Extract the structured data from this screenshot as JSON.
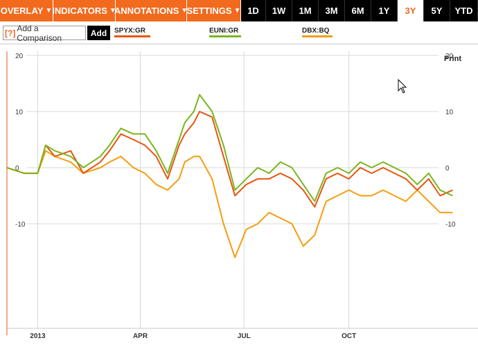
{
  "toolbar": {
    "menus": [
      {
        "label": "OVERLAY"
      },
      {
        "label": "INDICATORS"
      },
      {
        "label": "ANNOTATIONS"
      },
      {
        "label": "SETTINGS"
      }
    ],
    "ranges": [
      "1D",
      "1W",
      "1M",
      "3M",
      "6M",
      "1Y",
      "3Y",
      "5Y",
      "YTD"
    ],
    "active_range": "3Y",
    "caret": "▼"
  },
  "compare": {
    "help": "[?]",
    "placeholder": "Add a Comparison",
    "add_label": "Add"
  },
  "legend": [
    {
      "label": "SPYX:GR",
      "color": "#e8540f"
    },
    {
      "label": "EUNI:GR",
      "color": "#7ab51d"
    },
    {
      "label": "DBX:BQ",
      "color": "#f59d0e"
    }
  ],
  "print_label": "Print",
  "colors": {
    "accent": "#f26a1d",
    "grid": "#d8d8d8",
    "axis": "#e8540f"
  },
  "chart_data": {
    "type": "line",
    "y_ticks": [
      20,
      10,
      0,
      -10
    ],
    "ylim": [
      -16,
      20
    ],
    "x_labels": [
      "2013",
      "APR",
      "JUL",
      "OCT"
    ],
    "x_label_dates": [
      "2013-01-01",
      "2013-04-01",
      "2013-07-01",
      "2013-10-01"
    ],
    "x_range": [
      "2012-12-05",
      "2014-01-01"
    ],
    "series": [
      {
        "name": "SPYX:GR",
        "color": "#e8540f",
        "x": [
          "2012-12-05",
          "2012-12-20",
          "2013-01-01",
          "2013-01-08",
          "2013-01-16",
          "2013-01-30",
          "2013-02-10",
          "2013-02-25",
          "2013-03-05",
          "2013-03-15",
          "2013-03-26",
          "2013-04-05",
          "2013-04-15",
          "2013-04-25",
          "2013-05-05",
          "2013-05-10",
          "2013-05-18",
          "2013-05-23",
          "2013-06-03",
          "2013-06-13",
          "2013-06-23",
          "2013-07-03",
          "2013-07-13",
          "2013-07-23",
          "2013-08-02",
          "2013-08-12",
          "2013-08-22",
          "2013-09-01",
          "2013-09-11",
          "2013-09-21",
          "2013-10-01",
          "2013-10-11",
          "2013-10-21",
          "2013-10-31",
          "2013-11-10",
          "2013-11-20",
          "2013-11-30",
          "2013-12-10",
          "2013-12-20",
          "2013-12-31"
        ],
        "y": [
          0,
          -1,
          -1,
          4,
          2,
          3,
          -1,
          1,
          3,
          6,
          5,
          4,
          2,
          -2,
          4,
          6,
          8,
          10,
          9,
          2,
          -5,
          -3,
          -2,
          -2,
          -1,
          -2,
          -4,
          -7,
          -2,
          -1,
          -2,
          0,
          -1,
          0,
          -1,
          -2,
          -4,
          -2,
          -5,
          -4
        ]
      },
      {
        "name": "EUNI:GR",
        "color": "#7ab51d",
        "x": [
          "2012-12-05",
          "2012-12-20",
          "2013-01-01",
          "2013-01-08",
          "2013-01-16",
          "2013-01-30",
          "2013-02-10",
          "2013-02-25",
          "2013-03-05",
          "2013-03-15",
          "2013-03-26",
          "2013-04-05",
          "2013-04-15",
          "2013-04-25",
          "2013-05-05",
          "2013-05-10",
          "2013-05-18",
          "2013-05-23",
          "2013-06-03",
          "2013-06-13",
          "2013-06-23",
          "2013-07-03",
          "2013-07-13",
          "2013-07-23",
          "2013-08-02",
          "2013-08-12",
          "2013-08-22",
          "2013-09-01",
          "2013-09-11",
          "2013-09-21",
          "2013-10-01",
          "2013-10-11",
          "2013-10-21",
          "2013-10-31",
          "2013-11-10",
          "2013-11-20",
          "2013-11-30",
          "2013-12-10",
          "2013-12-20",
          "2013-12-31"
        ],
        "y": [
          0,
          -1,
          -1,
          4,
          3,
          2,
          0,
          2,
          4,
          7,
          6,
          6,
          3,
          -1,
          5,
          8,
          10,
          13,
          10,
          4,
          -4,
          -2,
          0,
          -1,
          1,
          0,
          -3,
          -6,
          -1,
          0,
          -1,
          1,
          0,
          1,
          0,
          -1,
          -3,
          -1,
          -4,
          -5
        ]
      },
      {
        "name": "DBX:BQ",
        "color": "#f59d0e",
        "x": [
          "2012-12-05",
          "2012-12-20",
          "2013-01-01",
          "2013-01-08",
          "2013-01-16",
          "2013-01-30",
          "2013-02-10",
          "2013-02-25",
          "2013-03-05",
          "2013-03-15",
          "2013-03-26",
          "2013-04-05",
          "2013-04-15",
          "2013-04-25",
          "2013-05-05",
          "2013-05-10",
          "2013-05-18",
          "2013-05-23",
          "2013-06-03",
          "2013-06-13",
          "2013-06-23",
          "2013-07-03",
          "2013-07-13",
          "2013-07-23",
          "2013-08-02",
          "2013-08-12",
          "2013-08-22",
          "2013-09-01",
          "2013-09-11",
          "2013-09-21",
          "2013-10-01",
          "2013-10-11",
          "2013-10-21",
          "2013-10-31",
          "2013-11-10",
          "2013-11-20",
          "2013-11-30",
          "2013-12-10",
          "2013-12-20",
          "2013-12-31"
        ],
        "y": [
          0,
          -1,
          -1,
          3,
          2,
          1,
          -1,
          0,
          1,
          2,
          0,
          -1,
          -3,
          -4,
          -2,
          1,
          2,
          2,
          -2,
          -10,
          -16,
          -11,
          -10,
          -8,
          -9,
          -10,
          -14,
          -12,
          -6,
          -5,
          -4,
          -5,
          -5,
          -4,
          -5,
          -6,
          -4,
          -6,
          -8,
          -8
        ]
      }
    ]
  }
}
